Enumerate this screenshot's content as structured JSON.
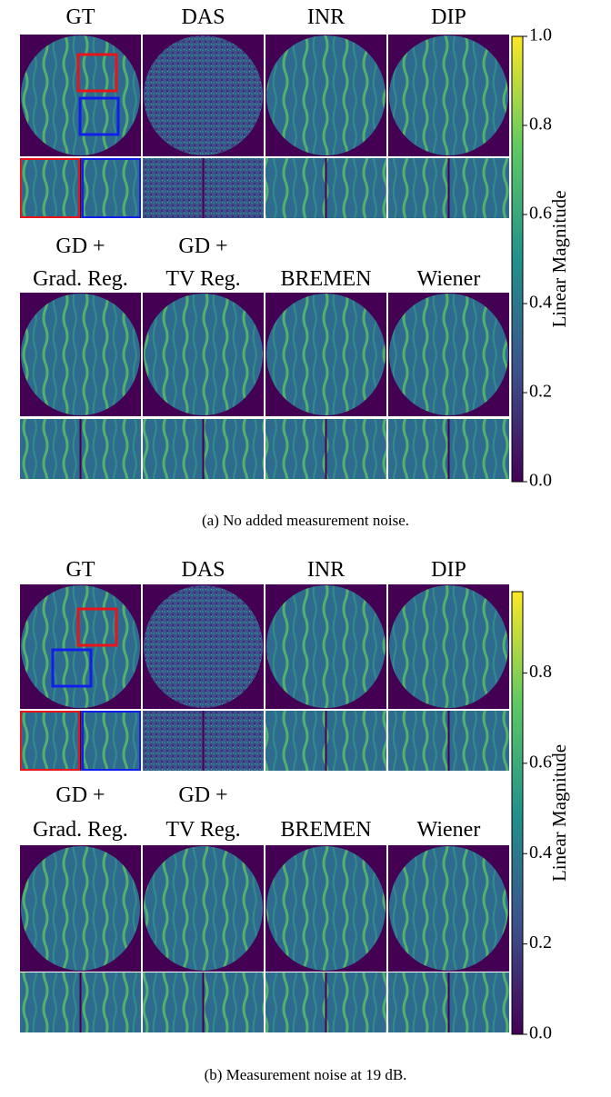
{
  "panels": [
    {
      "titles_top": [
        "GT",
        "DAS",
        "INR",
        "DIP"
      ],
      "titles_bottom_line1": [
        "GD +",
        "GD +"
      ],
      "titles_bottom_line2": [
        "Grad. Reg.",
        "TV Reg.",
        "BREMEN",
        "Wiener"
      ],
      "colorbar": {
        "label": "Linear Magnitude",
        "range": [
          0,
          1.0
        ],
        "ticks": [
          {
            "value": 0,
            "label": "0.0"
          },
          {
            "value": 0.2,
            "label": "0.2"
          },
          {
            "value": 0.4,
            "label": "0.4"
          },
          {
            "value": 0.6,
            "label": "0.6"
          },
          {
            "value": 0.8,
            "label": "0.8"
          },
          {
            "value": 1.0,
            "label": "1.0"
          }
        ]
      },
      "caption": "(a) No added measurement noise."
    },
    {
      "titles_top": [
        "GT",
        "DAS",
        "INR",
        "DIP"
      ],
      "titles_bottom_line1": [
        "GD +",
        "GD +"
      ],
      "titles_bottom_line2": [
        "Grad. Reg.",
        "TV Reg.",
        "BREMEN",
        "Wiener"
      ],
      "colorbar": {
        "label": "Linear Magnitude",
        "range": [
          0,
          0.98
        ],
        "ticks": [
          {
            "value": 0,
            "label": "0.0"
          },
          {
            "value": 0.2,
            "label": "0.2"
          },
          {
            "value": 0.4,
            "label": "0.4"
          },
          {
            "value": 0.6,
            "label": "0.6"
          },
          {
            "value": 0.8,
            "label": "0.8"
          }
        ]
      },
      "caption": "(b) Measurement noise at 19 dB."
    }
  ]
}
